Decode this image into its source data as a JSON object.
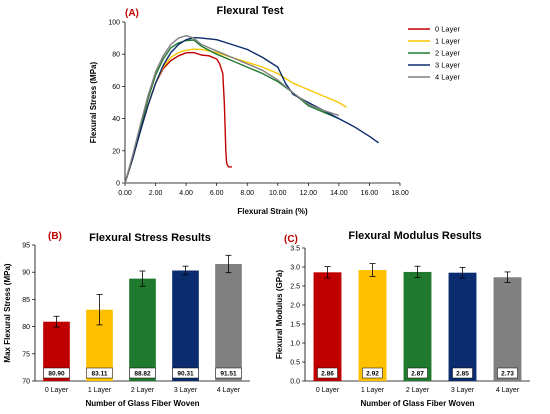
{
  "chart_data": [
    {
      "type": "line",
      "panel_label": "(A)",
      "title": "Flexural Test",
      "xlabel": "Flexural Strain (%)",
      "ylabel": "Flexural Stress (MPa)",
      "xlim": [
        0,
        18
      ],
      "ylim": [
        0,
        100
      ],
      "xticks": [
        "0.00",
        "2.00",
        "4.00",
        "6.00",
        "8.00",
        "10.00",
        "12.00",
        "14.00",
        "16.00",
        "18.00"
      ],
      "yticks": [
        "0",
        "20",
        "40",
        "60",
        "80",
        "100"
      ],
      "legend": "right",
      "series": [
        {
          "name": "0 Layer",
          "color": "#c00000",
          "x": [
            0,
            0.5,
            1.0,
            1.5,
            2.0,
            2.5,
            3.0,
            3.5,
            4.0,
            4.5,
            5.0,
            5.5,
            6.0,
            6.2,
            6.4,
            6.5,
            6.55,
            6.6,
            6.65,
            6.7,
            6.8,
            7.0
          ],
          "y": [
            0,
            15,
            32,
            48,
            62,
            71,
            76,
            79,
            80.9,
            81,
            79.5,
            79,
            77,
            74,
            68,
            50,
            35,
            20,
            13,
            11,
            10,
            10
          ]
        },
        {
          "name": "1 Layer",
          "color": "#f7c600",
          "x": [
            0,
            0.5,
            1.0,
            1.5,
            2.0,
            2.5,
            3.0,
            3.5,
            4.0,
            4.5,
            5.0,
            6.0,
            7.0,
            8.0,
            9.0,
            10.0,
            11.0,
            12.0,
            13.0,
            14.0,
            14.5
          ],
          "y": [
            0,
            15,
            32,
            48,
            62,
            72,
            78,
            81,
            82.5,
            83.1,
            83,
            81,
            78,
            75,
            72,
            68,
            62,
            58,
            54,
            50,
            47
          ]
        },
        {
          "name": "2 Layer",
          "color": "#1f7a2e",
          "x": [
            0,
            0.5,
            1.0,
            1.5,
            2.0,
            2.5,
            3.0,
            3.5,
            4.0,
            4.5,
            5.0,
            6.0,
            7.0,
            8.0,
            9.0,
            10.0,
            11.0,
            12.0,
            13.0,
            14.0
          ],
          "y": [
            0,
            16,
            34,
            52,
            67,
            77,
            84,
            87,
            88.5,
            88.8,
            85,
            80,
            76,
            72,
            68,
            63,
            56,
            48,
            44,
            40
          ]
        },
        {
          "name": "3 Layer",
          "color": "#0b2c6e",
          "x": [
            0,
            0.5,
            1.0,
            1.5,
            2.0,
            2.5,
            3.0,
            3.5,
            4.0,
            4.5,
            5.0,
            6.0,
            7.0,
            8.0,
            9.0,
            10.0,
            10.5,
            11.0,
            12.0,
            13.0,
            14.0,
            15.0,
            16.0,
            16.6
          ],
          "y": [
            0,
            15,
            32,
            48,
            62,
            73,
            81,
            86,
            89,
            90.3,
            90,
            89,
            86,
            83,
            78,
            72,
            62,
            55,
            50,
            45,
            40,
            35,
            29,
            25
          ]
        },
        {
          "name": "4 Layer",
          "color": "#808080",
          "x": [
            0,
            0.5,
            1.0,
            1.5,
            2.0,
            2.5,
            3.0,
            3.5,
            4.0,
            4.5,
            5.0,
            6.0,
            7.0,
            8.0,
            9.0,
            10.0,
            11.0,
            12.0,
            13.0,
            14.0
          ],
          "y": [
            0,
            17,
            36,
            54,
            69,
            79,
            86,
            90,
            91.5,
            90,
            86,
            82,
            78,
            74,
            70,
            64,
            56,
            49,
            45,
            42
          ]
        }
      ]
    },
    {
      "type": "bar",
      "panel_label": "(B)",
      "title": "Flexural Stress Results",
      "xlabel": "Number of Glass Fiber Woven",
      "ylabel": "Max Flexural Stress (MPa)",
      "ylim": [
        70,
        95
      ],
      "yticks": [
        "70",
        "75",
        "80",
        "85",
        "90",
        "95"
      ],
      "categories": [
        "0 Layer",
        "1 Layer",
        "2 Layer",
        "3 Layer",
        "4 Layer"
      ],
      "values": [
        80.9,
        83.11,
        88.82,
        90.31,
        91.51
      ],
      "value_labels": [
        "80.90",
        "83.11",
        "88.82",
        "90.31",
        "91.51"
      ],
      "errors": [
        1.0,
        2.8,
        1.4,
        0.8,
        1.6
      ],
      "colors": [
        "#c00000",
        "#ffc000",
        "#1f7a2e",
        "#0b2c6e",
        "#808080"
      ]
    },
    {
      "type": "bar",
      "panel_label": "(C)",
      "title": "Flexural Modulus Results",
      "xlabel": "Number of Glass Fiber Woven",
      "ylabel": "Flexural Modulus (GPa)",
      "ylim": [
        0,
        3.5
      ],
      "yticks": [
        "0.0",
        "0.5",
        "1.0",
        "1.5",
        "2.0",
        "2.5",
        "3.0",
        "3.5"
      ],
      "categories": [
        "0 Layer",
        "1 Layer",
        "2 Layer",
        "3 Layer",
        "4 Layer"
      ],
      "values": [
        2.86,
        2.92,
        2.87,
        2.85,
        2.73
      ],
      "value_labels": [
        "2.86",
        "2.92",
        "2.87",
        "2.85",
        "2.73"
      ],
      "errors": [
        0.15,
        0.17,
        0.15,
        0.14,
        0.14
      ],
      "colors": [
        "#c00000",
        "#ffc000",
        "#1f7a2e",
        "#0b2c6e",
        "#808080"
      ]
    }
  ]
}
